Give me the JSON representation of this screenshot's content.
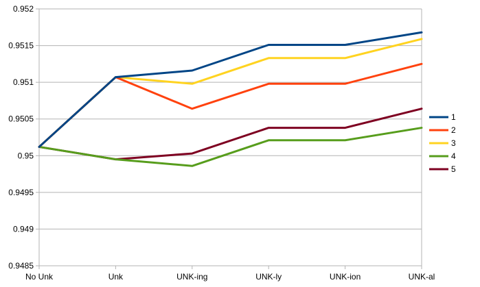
{
  "chart_data": {
    "type": "line",
    "title": "",
    "xlabel": "",
    "ylabel": "",
    "categories": [
      "No Unk",
      "Unk",
      "UNK-ing",
      "UNK-ly",
      "UNK-ion",
      "UNK-al"
    ],
    "ylim": [
      0.9485,
      0.952
    ],
    "yticks": [
      0.9485,
      0.949,
      0.9495,
      0.95,
      0.9505,
      0.951,
      0.9515,
      0.952
    ],
    "ytick_labels": [
      "0.9485",
      "0.949",
      "0.9495",
      "0.95",
      "0.9505",
      "0.951",
      "0.9515",
      "0.952"
    ],
    "grid": "horizontal",
    "legend_position": "right",
    "series": [
      {
        "name": "1",
        "color": "#004586",
        "values": [
          0.95012,
          0.95107,
          0.95116,
          0.95151,
          0.95151,
          0.95168
        ]
      },
      {
        "name": "2",
        "color": "#ff420e",
        "values": [
          0.95012,
          0.95107,
          0.95064,
          0.95098,
          0.95098,
          0.95125
        ]
      },
      {
        "name": "3",
        "color": "#ffd320",
        "values": [
          0.95012,
          0.95107,
          0.95098,
          0.95133,
          0.95133,
          0.95159
        ]
      },
      {
        "name": "4",
        "color": "#579d1c",
        "values": [
          0.95012,
          0.94995,
          0.94986,
          0.95021,
          0.95021,
          0.95038
        ]
      },
      {
        "name": "5",
        "color": "#7e0021",
        "values": [
          0.95012,
          0.94995,
          0.95003,
          0.95038,
          0.95038,
          0.95064
        ]
      }
    ]
  }
}
